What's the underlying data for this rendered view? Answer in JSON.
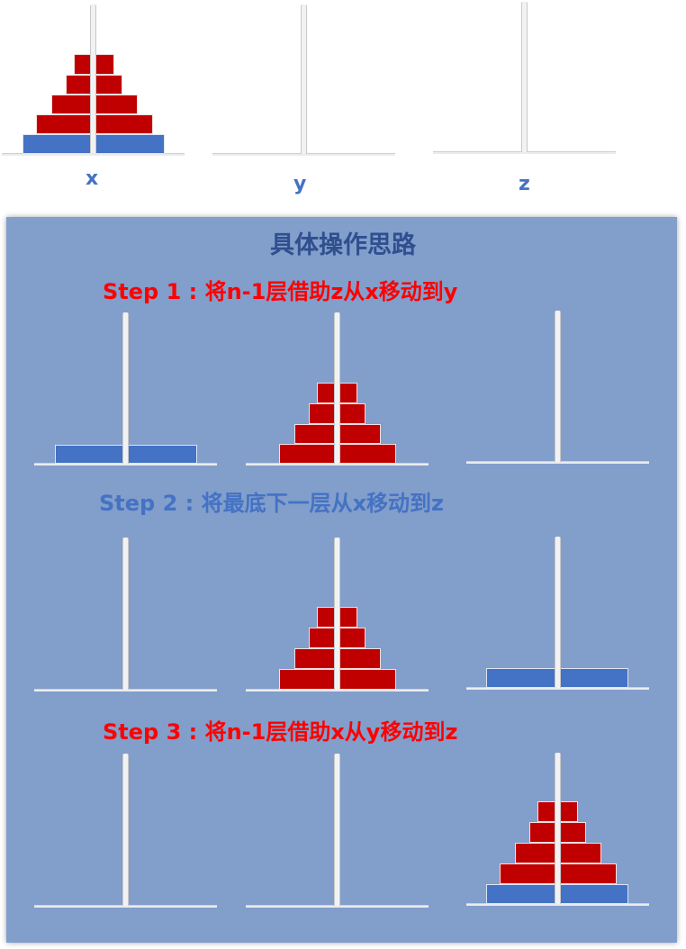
{
  "top_pegs": [
    "x",
    "y",
    "z"
  ],
  "panel_title": "具体操作思路",
  "steps": [
    {
      "label": "Step 1 : 将n-1层借助z从x移动到y",
      "color": "#ff0000"
    },
    {
      "label": "Step 2 : 将最底下一层从x移动到z",
      "color": "#4472c4"
    },
    {
      "label": "Step 3 : 将n-1层借助x从y移动到z",
      "color": "#ff0000"
    }
  ],
  "colors": {
    "small_disk": "#c00000",
    "large_disk": "#4472c4",
    "panel": "#829ecb"
  }
}
